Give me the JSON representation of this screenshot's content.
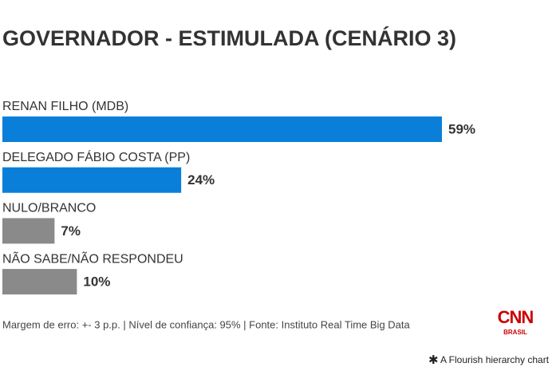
{
  "chart_data": {
    "type": "bar",
    "orientation": "horizontal",
    "title": "GOVERNADOR - ESTIMULADA (CENÁRIO 3)",
    "categories": [
      "RENAN FILHO (MDB)",
      "DELEGADO FÁBIO COSTA (PP)",
      "NULO/BRANCO",
      "NÃO SABE/NÃO RESPONDEU"
    ],
    "values": [
      59,
      24,
      7,
      10
    ],
    "value_labels": [
      "59%",
      "24%",
      "7%",
      "10%"
    ],
    "colors": [
      "#0a7fd9",
      "#0a7fd9",
      "#8a8a8a",
      "#8a8a8a"
    ],
    "footnote": "Margem de erro: +- 3 p.p. | Nível de confiança: 95% | Fonte: Instituto Real Time Big Data",
    "logo": {
      "top": "CNN",
      "bottom": "BRASIL"
    },
    "credit": "A Flourish hierarchy chart"
  }
}
